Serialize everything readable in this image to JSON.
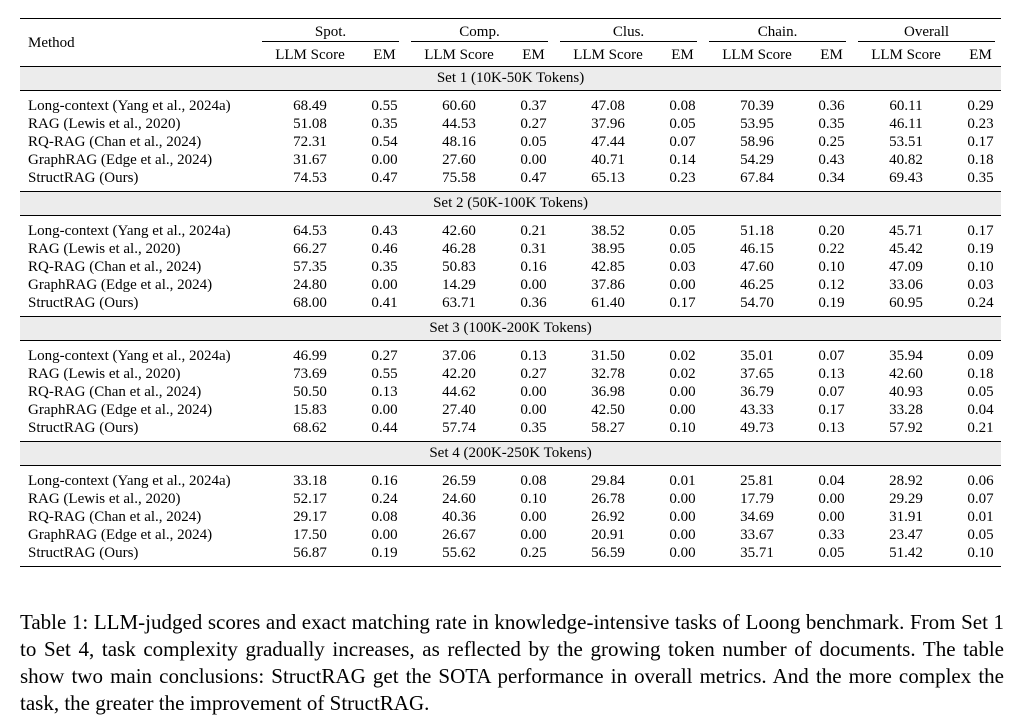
{
  "table": {
    "header": {
      "method": "Method",
      "groups": [
        "Spot.",
        "Comp.",
        "Clus.",
        "Chain.",
        "Overall"
      ],
      "metric_llm": "LLM Score",
      "metric_em": "EM"
    },
    "sets": [
      {
        "title": "Set 1  (10K-50K Tokens)",
        "rows": [
          {
            "method": "Long-context (Yang et al., 2024a)",
            "values": [
              "68.49",
              "0.55",
              "60.60",
              "0.37",
              "47.08",
              "0.08",
              "70.39",
              "0.36",
              "60.11",
              "0.29"
            ],
            "bold": [
              false,
              true,
              false,
              false,
              false,
              false,
              true,
              true,
              false,
              false
            ]
          },
          {
            "method": "RAG (Lewis et al., 2020)",
            "values": [
              "51.08",
              "0.35",
              "44.53",
              "0.27",
              "37.96",
              "0.05",
              "53.95",
              "0.35",
              "46.11",
              "0.23"
            ],
            "bold": [
              false,
              false,
              false,
              false,
              false,
              false,
              false,
              false,
              false,
              false
            ]
          },
          {
            "method": "RQ-RAG (Chan et al., 2024)",
            "values": [
              "72.31",
              "0.54",
              "48.16",
              "0.05",
              "47.44",
              "0.07",
              "58.96",
              "0.25",
              "53.51",
              "0.17"
            ],
            "bold": [
              false,
              false,
              false,
              false,
              false,
              false,
              false,
              false,
              false,
              false
            ]
          },
          {
            "method": "GraphRAG (Edge et al., 2024)",
            "values": [
              "31.67",
              "0.00",
              "27.60",
              "0.00",
              "40.71",
              "0.14",
              "54.29",
              "0.43",
              "40.82",
              "0.18"
            ],
            "bold": [
              false,
              false,
              false,
              false,
              false,
              false,
              false,
              false,
              false,
              false
            ]
          },
          {
            "method": "StructRAG (Ours)",
            "values": [
              "74.53",
              "0.47",
              "75.58",
              "0.47",
              "65.13",
              "0.23",
              "67.84",
              "0.34",
              "69.43",
              "0.35"
            ],
            "bold": [
              true,
              false,
              true,
              true,
              true,
              true,
              false,
              false,
              true,
              true
            ]
          }
        ]
      },
      {
        "title": "Set 2  (50K-100K Tokens)",
        "rows": [
          {
            "method": "Long-context (Yang et al., 2024a)",
            "values": [
              "64.53",
              "0.43",
              "42.60",
              "0.21",
              "38.52",
              "0.05",
              "51.18",
              "0.20",
              "45.71",
              "0.17"
            ],
            "bold": [
              false,
              false,
              false,
              false,
              false,
              false,
              false,
              false,
              false,
              false
            ]
          },
          {
            "method": "RAG (Lewis et al., 2020)",
            "values": [
              "66.27",
              "0.46",
              "46.28",
              "0.31",
              "38.95",
              "0.05",
              "46.15",
              "0.22",
              "45.42",
              "0.19"
            ],
            "bold": [
              false,
              true,
              false,
              false,
              false,
              false,
              false,
              true,
              false,
              false
            ]
          },
          {
            "method": "RQ-RAG (Chan et al., 2024)",
            "values": [
              "57.35",
              "0.35",
              "50.83",
              "0.16",
              "42.85",
              "0.03",
              "47.60",
              "0.10",
              "47.09",
              "0.10"
            ],
            "bold": [
              false,
              false,
              false,
              false,
              false,
              false,
              false,
              false,
              false,
              false
            ]
          },
          {
            "method": "GraphRAG (Edge et al., 2024)",
            "values": [
              "24.80",
              "0.00",
              "14.29",
              "0.00",
              "37.86",
              "0.00",
              "46.25",
              "0.12",
              "33.06",
              "0.03"
            ],
            "bold": [
              false,
              false,
              false,
              false,
              false,
              false,
              false,
              false,
              false,
              false
            ]
          },
          {
            "method": "StructRAG (Ours)",
            "values": [
              "68.00",
              "0.41",
              "63.71",
              "0.36",
              "61.40",
              "0.17",
              "54.70",
              "0.19",
              "60.95",
              "0.24"
            ],
            "bold": [
              true,
              false,
              true,
              true,
              true,
              true,
              true,
              false,
              true,
              true
            ]
          }
        ]
      },
      {
        "title": "Set 3  (100K-200K Tokens)",
        "rows": [
          {
            "method": "Long-context (Yang et al., 2024a)",
            "values": [
              "46.99",
              "0.27",
              "37.06",
              "0.13",
              "31.50",
              "0.02",
              "35.01",
              "0.07",
              "35.94",
              "0.09"
            ],
            "bold": [
              false,
              false,
              false,
              false,
              false,
              false,
              false,
              false,
              false,
              false
            ]
          },
          {
            "method": "RAG (Lewis et al., 2020)",
            "values": [
              "73.69",
              "0.55",
              "42.20",
              "0.27",
              "32.78",
              "0.02",
              "37.65",
              "0.13",
              "42.60",
              "0.18"
            ],
            "bold": [
              true,
              true,
              false,
              false,
              false,
              false,
              false,
              false,
              false,
              false
            ]
          },
          {
            "method": "RQ-RAG (Chan et al., 2024)",
            "values": [
              "50.50",
              "0.13",
              "44.62",
              "0.00",
              "36.98",
              "0.00",
              "36.79",
              "0.07",
              "40.93",
              "0.05"
            ],
            "bold": [
              false,
              false,
              false,
              false,
              false,
              false,
              false,
              false,
              false,
              false
            ]
          },
          {
            "method": "GraphRAG (Edge et al., 2024)",
            "values": [
              "15.83",
              "0.00",
              "27.40",
              "0.00",
              "42.50",
              "0.00",
              "43.33",
              "0.17",
              "33.28",
              "0.04"
            ],
            "bold": [
              false,
              false,
              false,
              false,
              false,
              false,
              false,
              false,
              false,
              false
            ]
          },
          {
            "method": "StructRAG (Ours)",
            "values": [
              "68.62",
              "0.44",
              "57.74",
              "0.35",
              "58.27",
              "0.10",
              "49.73",
              "0.13",
              "57.92",
              "0.21"
            ],
            "bold": [
              false,
              false,
              true,
              true,
              true,
              true,
              true,
              true,
              true,
              true
            ]
          }
        ]
      },
      {
        "title": "Set 4  (200K-250K Tokens)",
        "rows": [
          {
            "method": "Long-context (Yang et al., 2024a)",
            "values": [
              "33.18",
              "0.16",
              "26.59",
              "0.08",
              "29.84",
              "0.01",
              "25.81",
              "0.04",
              "28.92",
              "0.06"
            ],
            "bold": [
              false,
              false,
              false,
              false,
              false,
              true,
              false,
              false,
              false,
              false
            ]
          },
          {
            "method": "RAG (Lewis et al., 2020)",
            "values": [
              "52.17",
              "0.24",
              "24.60",
              "0.10",
              "26.78",
              "0.00",
              "17.79",
              "0.00",
              "29.29",
              "0.07"
            ],
            "bold": [
              false,
              true,
              false,
              false,
              false,
              false,
              false,
              false,
              false,
              false
            ]
          },
          {
            "method": "RQ-RAG (Chan et al., 2024)",
            "values": [
              "29.17",
              "0.08",
              "40.36",
              "0.00",
              "26.92",
              "0.00",
              "34.69",
              "0.00",
              "31.91",
              "0.01"
            ],
            "bold": [
              false,
              false,
              false,
              false,
              false,
              false,
              false,
              false,
              false,
              false
            ]
          },
          {
            "method": "GraphRAG (Edge et al., 2024)",
            "values": [
              "17.50",
              "0.00",
              "26.67",
              "0.00",
              "20.91",
              "0.00",
              "33.67",
              "0.33",
              "23.47",
              "0.05"
            ],
            "bold": [
              false,
              false,
              false,
              false,
              false,
              false,
              false,
              false,
              false,
              false
            ]
          },
          {
            "method": "StructRAG (Ours)",
            "values": [
              "56.87",
              "0.19",
              "55.62",
              "0.25",
              "56.59",
              "0.00",
              "35.71",
              "0.05",
              "51.42",
              "0.10"
            ],
            "bold": [
              true,
              false,
              true,
              true,
              true,
              false,
              true,
              true,
              true,
              true
            ]
          }
        ]
      }
    ]
  },
  "caption": "Table 1: LLM-judged scores and exact matching rate in knowledge-intensive tasks of Loong benchmark. From Set 1 to Set 4, task complexity gradually increases, as reflected by the growing token number of documents. The table show two main conclusions: StructRAG get the SOTA performance in overall metrics. And the more complex the task, the greater the improvement of StructRAG."
}
